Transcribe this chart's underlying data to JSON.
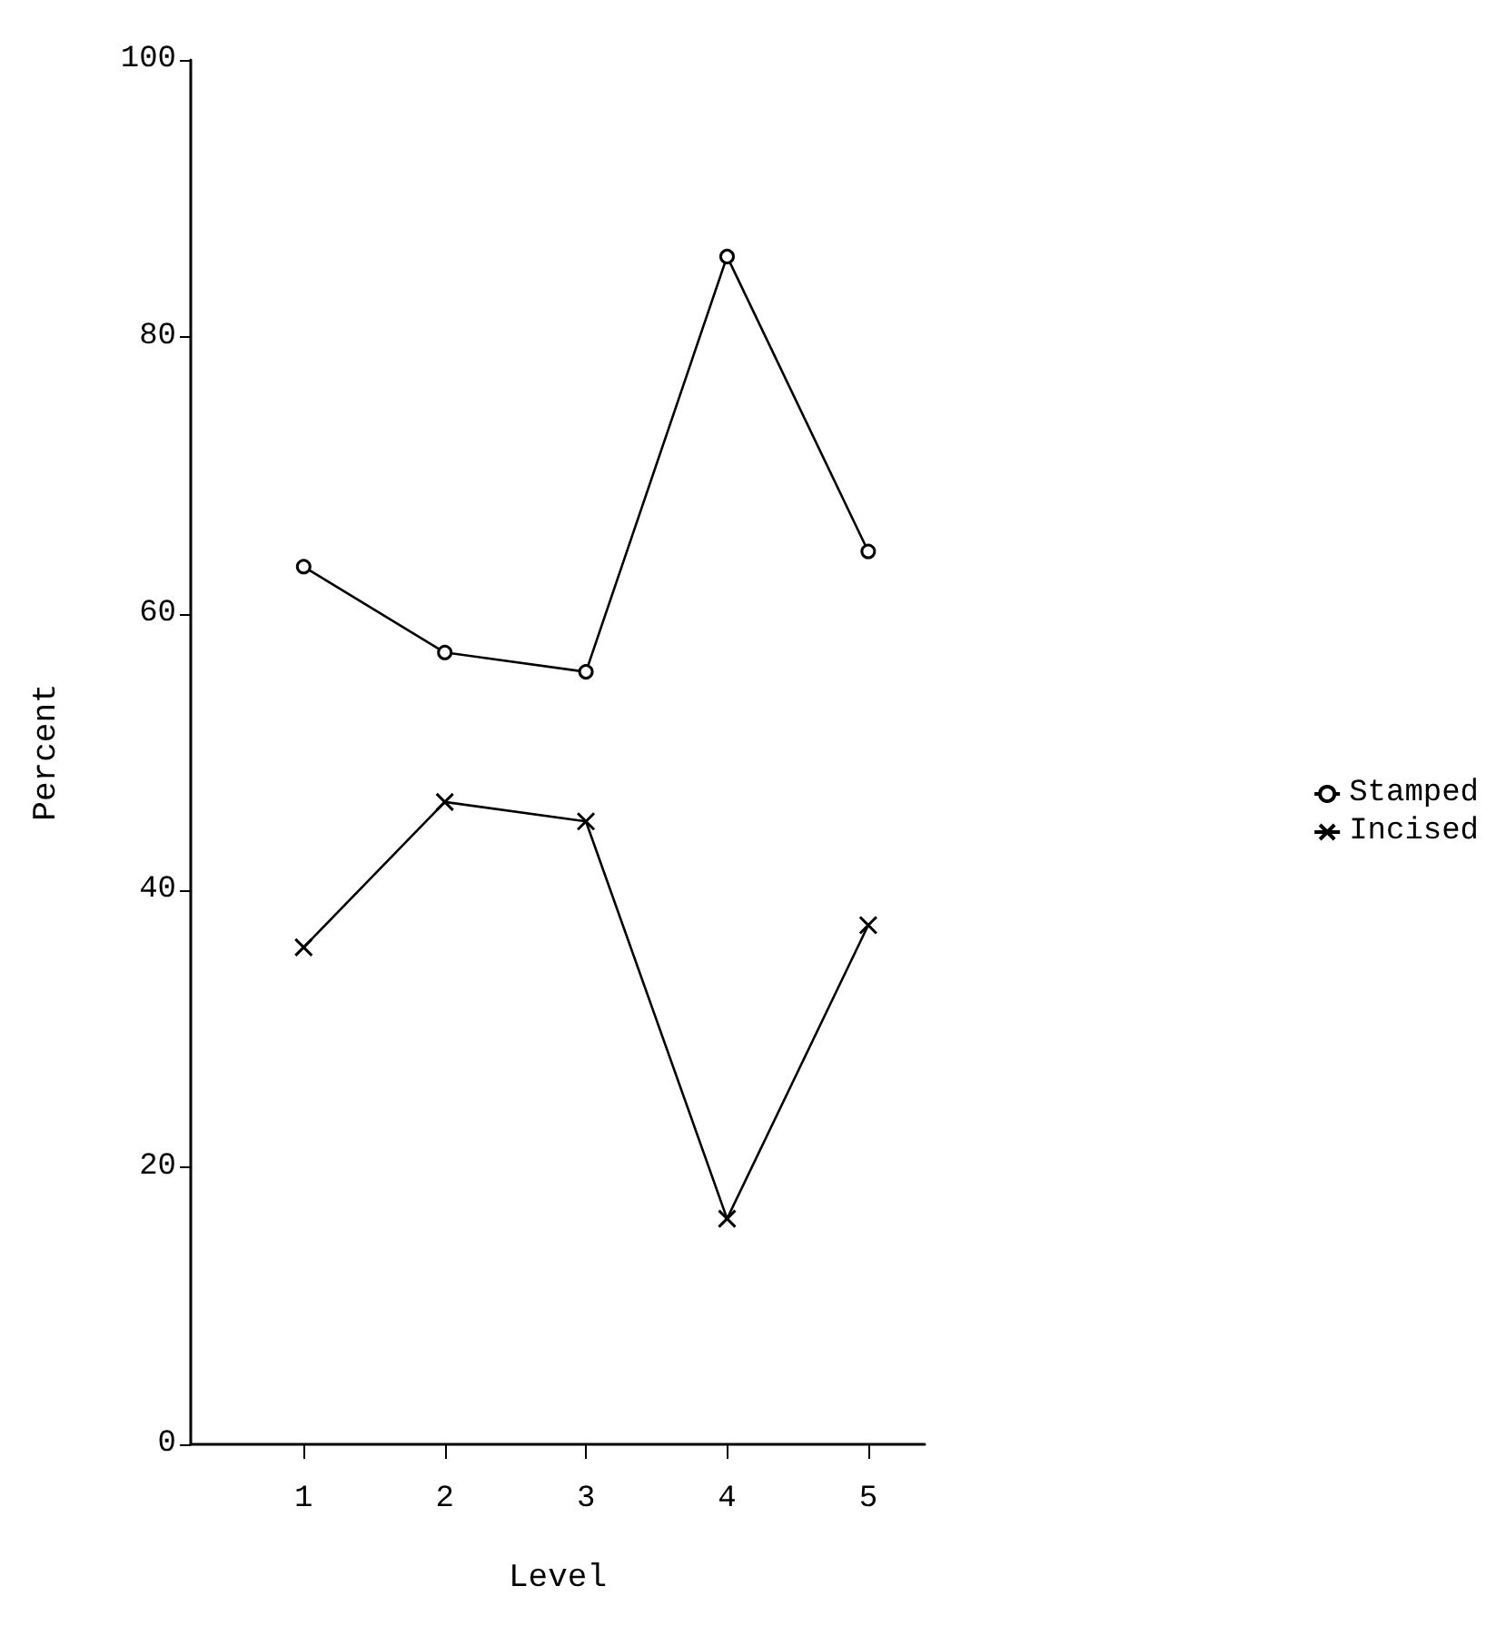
{
  "chart_data": {
    "type": "line",
    "xlabel": "Level",
    "ylabel": "Percent",
    "x": [
      1,
      2,
      3,
      4,
      5
    ],
    "series": [
      {
        "name": "Stamped",
        "color": "#000000",
        "marker": "circle",
        "values": [
          63.4,
          57.2,
          55.8,
          85.8,
          64.5
        ]
      },
      {
        "name": "Incised",
        "color": "#000000",
        "marker": "cross",
        "values": [
          35.9,
          46.4,
          45,
          16.3,
          37.5
        ]
      }
    ],
    "xlim": [
      0.2,
      5.4
    ],
    "xticks": [
      1,
      2,
      3,
      4,
      5
    ],
    "ylim": [
      0,
      100
    ],
    "yticks": [
      0,
      20,
      40,
      60,
      80,
      100
    ],
    "grid": false,
    "legend": "right",
    "line_style": "solid"
  }
}
